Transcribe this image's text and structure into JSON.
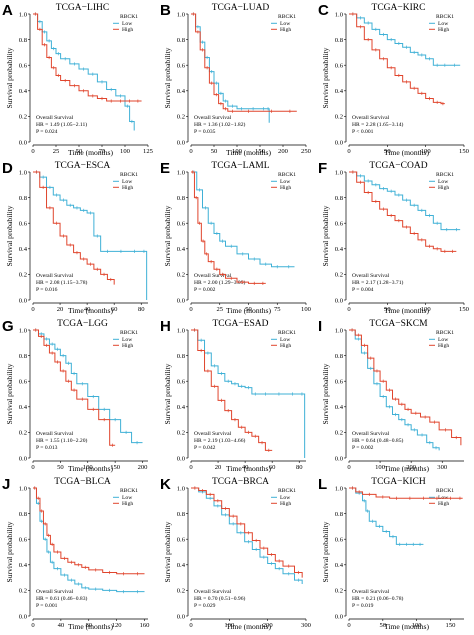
{
  "figure": {
    "x_label": "Time (months)",
    "y_label": "Survival probability",
    "legend_title": "RBCK1",
    "legend_low": "Low",
    "legend_high": "High",
    "overall_label": "Overall Survival",
    "low_color": "#3fb0d6",
    "high_color": "#e0452d"
  },
  "chart_data": [
    {
      "letter": "A",
      "title": "TCGA−LIHC",
      "type": "line",
      "xlim": [
        0,
        125
      ],
      "xticks": [
        0,
        25,
        50,
        75,
        100,
        125
      ],
      "ylim": [
        0,
        1
      ],
      "yticks": [
        0.0,
        0.2,
        0.4,
        0.6,
        0.8,
        1.0
      ],
      "hr": "HR = 1.49 (1.05−2.11)",
      "p": "P = 0.024",
      "series": [
        {
          "name": "Low",
          "x": [
            0,
            5,
            10,
            15,
            20,
            25,
            30,
            40,
            50,
            60,
            70,
            80,
            90,
            100,
            105,
            110
          ],
          "y": [
            1,
            0.94,
            0.86,
            0.79,
            0.73,
            0.69,
            0.65,
            0.61,
            0.57,
            0.53,
            0.47,
            0.41,
            0.36,
            0.28,
            0.16,
            0.09
          ]
        },
        {
          "name": "High",
          "x": [
            0,
            5,
            10,
            15,
            20,
            25,
            30,
            40,
            50,
            60,
            70,
            80,
            90,
            100,
            110,
            118
          ],
          "y": [
            1,
            0.88,
            0.76,
            0.66,
            0.58,
            0.52,
            0.48,
            0.44,
            0.4,
            0.36,
            0.34,
            0.32,
            0.32,
            0.32,
            0.32,
            0.32
          ]
        }
      ]
    },
    {
      "letter": "B",
      "title": "TCGA−LUAD",
      "type": "line",
      "xlim": [
        0,
        250
      ],
      "xticks": [
        0,
        50,
        100,
        150,
        200,
        250
      ],
      "ylim": [
        0,
        1
      ],
      "yticks": [
        0.0,
        0.2,
        0.4,
        0.6,
        0.8,
        1.0
      ],
      "hr": "HR = 1.36 (1.02−1.82)",
      "p": "P = 0.035",
      "series": [
        {
          "name": "Low",
          "x": [
            0,
            10,
            20,
            30,
            40,
            50,
            60,
            70,
            80,
            100,
            120,
            150,
            165,
            170
          ],
          "y": [
            1,
            0.9,
            0.78,
            0.66,
            0.55,
            0.46,
            0.38,
            0.32,
            0.28,
            0.26,
            0.26,
            0.26,
            0.26,
            0.15
          ]
        },
        {
          "name": "High",
          "x": [
            0,
            10,
            20,
            30,
            40,
            50,
            60,
            70,
            80,
            100,
            150,
            200,
            230
          ],
          "y": [
            1,
            0.86,
            0.72,
            0.58,
            0.46,
            0.37,
            0.3,
            0.26,
            0.24,
            0.24,
            0.24,
            0.24,
            0.24
          ]
        }
      ]
    },
    {
      "letter": "C",
      "title": "TCGA−KIRC",
      "type": "line",
      "xlim": [
        0,
        150
      ],
      "xticks": [
        0,
        50,
        100,
        150
      ],
      "ylim": [
        0,
        1
      ],
      "yticks": [
        0.0,
        0.2,
        0.4,
        0.6,
        0.8,
        1.0
      ],
      "hr": "HR = 2.28 (1.65−3.14)",
      "p": "P < 0.001",
      "series": [
        {
          "name": "Low",
          "x": [
            0,
            10,
            20,
            30,
            40,
            50,
            60,
            70,
            80,
            90,
            100,
            110,
            120,
            130,
            145
          ],
          "y": [
            1,
            0.97,
            0.93,
            0.88,
            0.84,
            0.8,
            0.77,
            0.74,
            0.7,
            0.68,
            0.65,
            0.6,
            0.6,
            0.6,
            0.6
          ]
        },
        {
          "name": "High",
          "x": [
            0,
            10,
            20,
            30,
            40,
            50,
            60,
            70,
            80,
            90,
            100,
            110,
            120,
            125
          ],
          "y": [
            1,
            0.9,
            0.8,
            0.72,
            0.65,
            0.58,
            0.52,
            0.47,
            0.42,
            0.38,
            0.34,
            0.31,
            0.3,
            0.3
          ]
        }
      ]
    },
    {
      "letter": "D",
      "title": "TCGA−ESCA",
      "type": "line",
      "xlim": [
        0,
        85
      ],
      "xticks": [
        0,
        20,
        40,
        60,
        80
      ],
      "ylim": [
        0,
        1
      ],
      "yticks": [
        0.0,
        0.2,
        0.4,
        0.6,
        0.8,
        1.0
      ],
      "hr": "HR = 2.08 (1.15−3.78)",
      "p": "P = 0.016",
      "series": [
        {
          "name": "Low",
          "x": [
            0,
            5,
            10,
            15,
            20,
            25,
            30,
            35,
            40,
            45,
            50,
            60,
            70,
            80,
            84
          ],
          "y": [
            1,
            0.96,
            0.88,
            0.82,
            0.78,
            0.74,
            0.72,
            0.7,
            0.68,
            0.5,
            0.38,
            0.38,
            0.38,
            0.38,
            0.0
          ]
        },
        {
          "name": "High",
          "x": [
            0,
            5,
            10,
            15,
            20,
            25,
            30,
            35,
            40,
            45,
            50,
            55,
            60
          ],
          "y": [
            1,
            0.88,
            0.72,
            0.6,
            0.5,
            0.43,
            0.37,
            0.32,
            0.28,
            0.24,
            0.2,
            0.16,
            0.12
          ]
        }
      ]
    },
    {
      "letter": "E",
      "title": "TCGA−LAML",
      "type": "line",
      "xlim": [
        0,
        100
      ],
      "xticks": [
        0,
        25,
        50,
        75,
        100
      ],
      "ylim": [
        0,
        1
      ],
      "yticks": [
        0.0,
        0.2,
        0.4,
        0.6,
        0.8,
        1.0
      ],
      "hr": "HR = 2.00 (1.29−3.09)",
      "p": "P = 0.002",
      "series": [
        {
          "name": "Low",
          "x": [
            0,
            5,
            10,
            15,
            20,
            25,
            30,
            40,
            50,
            60,
            70,
            80,
            90
          ],
          "y": [
            1,
            0.86,
            0.72,
            0.6,
            0.52,
            0.46,
            0.42,
            0.36,
            0.32,
            0.28,
            0.26,
            0.26,
            0.26
          ]
        },
        {
          "name": "High",
          "x": [
            0,
            3,
            6,
            9,
            12,
            15,
            20,
            25,
            30,
            40,
            50,
            60,
            65
          ],
          "y": [
            1,
            0.8,
            0.6,
            0.46,
            0.36,
            0.3,
            0.24,
            0.2,
            0.17,
            0.14,
            0.13,
            0.13,
            0.13
          ]
        }
      ]
    },
    {
      "letter": "F",
      "title": "TCGA−COAD",
      "type": "line",
      "xlim": [
        0,
        150
      ],
      "xticks": [
        0,
        50,
        100,
        150
      ],
      "ylim": [
        0,
        1
      ],
      "yticks": [
        0.0,
        0.2,
        0.4,
        0.6,
        0.8,
        1.0
      ],
      "hr": "HR = 2.17 (1.28−3.71)",
      "p": "P = 0.004",
      "series": [
        {
          "name": "Low",
          "x": [
            0,
            10,
            20,
            30,
            40,
            50,
            60,
            70,
            80,
            90,
            100,
            110,
            120,
            135,
            145
          ],
          "y": [
            1,
            0.97,
            0.93,
            0.9,
            0.87,
            0.85,
            0.82,
            0.78,
            0.74,
            0.7,
            0.66,
            0.6,
            0.55,
            0.55,
            0.55
          ]
        },
        {
          "name": "High",
          "x": [
            0,
            10,
            20,
            30,
            40,
            50,
            60,
            70,
            80,
            90,
            100,
            110,
            120,
            130,
            140
          ],
          "y": [
            1,
            0.92,
            0.84,
            0.77,
            0.71,
            0.66,
            0.62,
            0.57,
            0.52,
            0.47,
            0.42,
            0.4,
            0.38,
            0.38,
            0.38
          ]
        }
      ]
    },
    {
      "letter": "G",
      "title": "TCGA−LGG",
      "type": "line",
      "xlim": [
        0,
        210
      ],
      "xticks": [
        0,
        50,
        100,
        150,
        200
      ],
      "ylim": [
        0,
        1
      ],
      "yticks": [
        0.0,
        0.2,
        0.4,
        0.6,
        0.8,
        1.0
      ],
      "hr": "HR = 1.55 (1.10−2.20)",
      "p": "P = 0.013",
      "series": [
        {
          "name": "Low",
          "x": [
            0,
            10,
            20,
            30,
            40,
            50,
            60,
            70,
            80,
            100,
            120,
            140,
            160,
            180,
            200
          ],
          "y": [
            1,
            0.97,
            0.93,
            0.89,
            0.85,
            0.8,
            0.74,
            0.66,
            0.58,
            0.48,
            0.38,
            0.3,
            0.2,
            0.12,
            0.12
          ]
        },
        {
          "name": "High",
          "x": [
            0,
            10,
            20,
            30,
            40,
            50,
            60,
            70,
            80,
            100,
            120,
            140,
            150
          ],
          "y": [
            1,
            0.95,
            0.88,
            0.82,
            0.75,
            0.68,
            0.6,
            0.53,
            0.46,
            0.38,
            0.3,
            0.1,
            0.1
          ]
        }
      ]
    },
    {
      "letter": "H",
      "title": "TCGA−ESAD",
      "type": "line",
      "xlim": [
        0,
        85
      ],
      "xticks": [
        0,
        20,
        40,
        60,
        80
      ],
      "ylim": [
        0,
        1
      ],
      "yticks": [
        0.0,
        0.2,
        0.4,
        0.6,
        0.8,
        1.0
      ],
      "hr": "HR = 2.19 (1.03−4.66)",
      "p": "P = 0.042",
      "series": [
        {
          "name": "Low",
          "x": [
            0,
            5,
            10,
            15,
            20,
            25,
            30,
            35,
            40,
            45,
            50,
            60,
            70,
            80,
            84
          ],
          "y": [
            1,
            0.92,
            0.82,
            0.72,
            0.66,
            0.6,
            0.58,
            0.56,
            0.55,
            0.5,
            0.5,
            0.5,
            0.5,
            0.5,
            0.0
          ]
        },
        {
          "name": "High",
          "x": [
            0,
            5,
            10,
            15,
            20,
            25,
            30,
            35,
            40,
            45,
            50,
            55,
            60
          ],
          "y": [
            1,
            0.84,
            0.68,
            0.56,
            0.45,
            0.37,
            0.3,
            0.24,
            0.2,
            0.17,
            0.12,
            0.06,
            0.06
          ]
        }
      ]
    },
    {
      "letter": "I",
      "title": "TCGA−SKCM",
      "type": "line",
      "xlim": [
        0,
        370
      ],
      "xticks": [
        0,
        100,
        200,
        300
      ],
      "ylim": [
        0,
        1
      ],
      "yticks": [
        0.0,
        0.2,
        0.4,
        0.6,
        0.8,
        1.0
      ],
      "hr": "HR = 0.64 (0.48−0.85)",
      "p": "P = 0.002",
      "series": [
        {
          "name": "Low",
          "x": [
            0,
            20,
            40,
            60,
            80,
            100,
            120,
            140,
            160,
            180,
            200,
            220,
            250,
            270,
            290
          ],
          "y": [
            1,
            0.93,
            0.82,
            0.7,
            0.58,
            0.48,
            0.4,
            0.34,
            0.3,
            0.26,
            0.22,
            0.18,
            0.12,
            0.08,
            0.06
          ]
        },
        {
          "name": "High",
          "x": [
            0,
            20,
            40,
            60,
            80,
            100,
            120,
            140,
            160,
            180,
            200,
            230,
            260,
            290,
            330,
            360
          ],
          "y": [
            1,
            0.96,
            0.88,
            0.78,
            0.68,
            0.6,
            0.53,
            0.46,
            0.42,
            0.38,
            0.35,
            0.32,
            0.28,
            0.22,
            0.16,
            0.1
          ]
        }
      ]
    },
    {
      "letter": "J",
      "title": "TCGA−BLCA",
      "type": "line",
      "xlim": [
        0,
        165
      ],
      "xticks": [
        0,
        40,
        80,
        120,
        160
      ],
      "ylim": [
        0,
        1
      ],
      "yticks": [
        0.0,
        0.2,
        0.4,
        0.6,
        0.8,
        1.0
      ],
      "hr": "HR = 0.61 (0.46−0.83)",
      "p": "P = 0.001",
      "series": [
        {
          "name": "Low",
          "x": [
            0,
            5,
            10,
            15,
            20,
            25,
            30,
            40,
            50,
            60,
            70,
            80,
            100,
            120,
            140,
            160
          ],
          "y": [
            1,
            0.88,
            0.74,
            0.6,
            0.5,
            0.42,
            0.37,
            0.32,
            0.28,
            0.25,
            0.22,
            0.21,
            0.2,
            0.19,
            0.19,
            0.19
          ]
        },
        {
          "name": "High",
          "x": [
            0,
            5,
            10,
            15,
            20,
            25,
            30,
            40,
            50,
            60,
            70,
            80,
            100,
            120,
            140,
            160
          ],
          "y": [
            1,
            0.92,
            0.82,
            0.72,
            0.63,
            0.56,
            0.5,
            0.45,
            0.42,
            0.4,
            0.38,
            0.36,
            0.34,
            0.33,
            0.33,
            0.33
          ]
        }
      ]
    },
    {
      "letter": "K",
      "title": "TCGA−BRCA",
      "type": "line",
      "xlim": [
        0,
        300
      ],
      "xticks": [
        0,
        100,
        200,
        300
      ],
      "ylim": [
        0,
        1
      ],
      "yticks": [
        0.0,
        0.2,
        0.4,
        0.6,
        0.8,
        1.0
      ],
      "hr": "HR = 0.70 (0.51−0.96)",
      "p": "P = 0.029",
      "series": [
        {
          "name": "Low",
          "x": [
            0,
            20,
            40,
            60,
            80,
            100,
            120,
            140,
            160,
            180,
            200,
            220,
            240,
            270,
            290
          ],
          "y": [
            1,
            0.97,
            0.92,
            0.86,
            0.79,
            0.72,
            0.65,
            0.58,
            0.52,
            0.46,
            0.41,
            0.37,
            0.33,
            0.28,
            0.25
          ]
        },
        {
          "name": "High",
          "x": [
            0,
            20,
            40,
            60,
            80,
            100,
            120,
            140,
            160,
            180,
            200,
            220,
            240,
            270,
            290
          ],
          "y": [
            1,
            0.98,
            0.95,
            0.9,
            0.84,
            0.78,
            0.72,
            0.65,
            0.59,
            0.53,
            0.48,
            0.43,
            0.39,
            0.34,
            0.3
          ]
        }
      ]
    },
    {
      "letter": "L",
      "title": "TCGA−KICH",
      "type": "line",
      "xlim": [
        0,
        170
      ],
      "xticks": [
        0,
        50,
        100,
        150
      ],
      "ylim": [
        0,
        1
      ],
      "yticks": [
        0.0,
        0.2,
        0.4,
        0.6,
        0.8,
        1.0
      ],
      "hr": "HR = 0.21 (0.06−0.78)",
      "p": "P = 0.019",
      "series": [
        {
          "name": "Low",
          "x": [
            0,
            10,
            20,
            25,
            30,
            40,
            50,
            60,
            70,
            80,
            90,
            100,
            110
          ],
          "y": [
            1,
            0.96,
            0.9,
            0.82,
            0.74,
            0.7,
            0.66,
            0.62,
            0.56,
            0.56,
            0.56,
            0.56,
            0.56
          ]
        },
        {
          "name": "High",
          "x": [
            0,
            10,
            20,
            40,
            60,
            80,
            100,
            120,
            140,
            160,
            168
          ],
          "y": [
            1,
            0.97,
            0.95,
            0.93,
            0.92,
            0.92,
            0.92,
            0.92,
            0.92,
            0.92,
            0.92
          ]
        }
      ]
    }
  ]
}
